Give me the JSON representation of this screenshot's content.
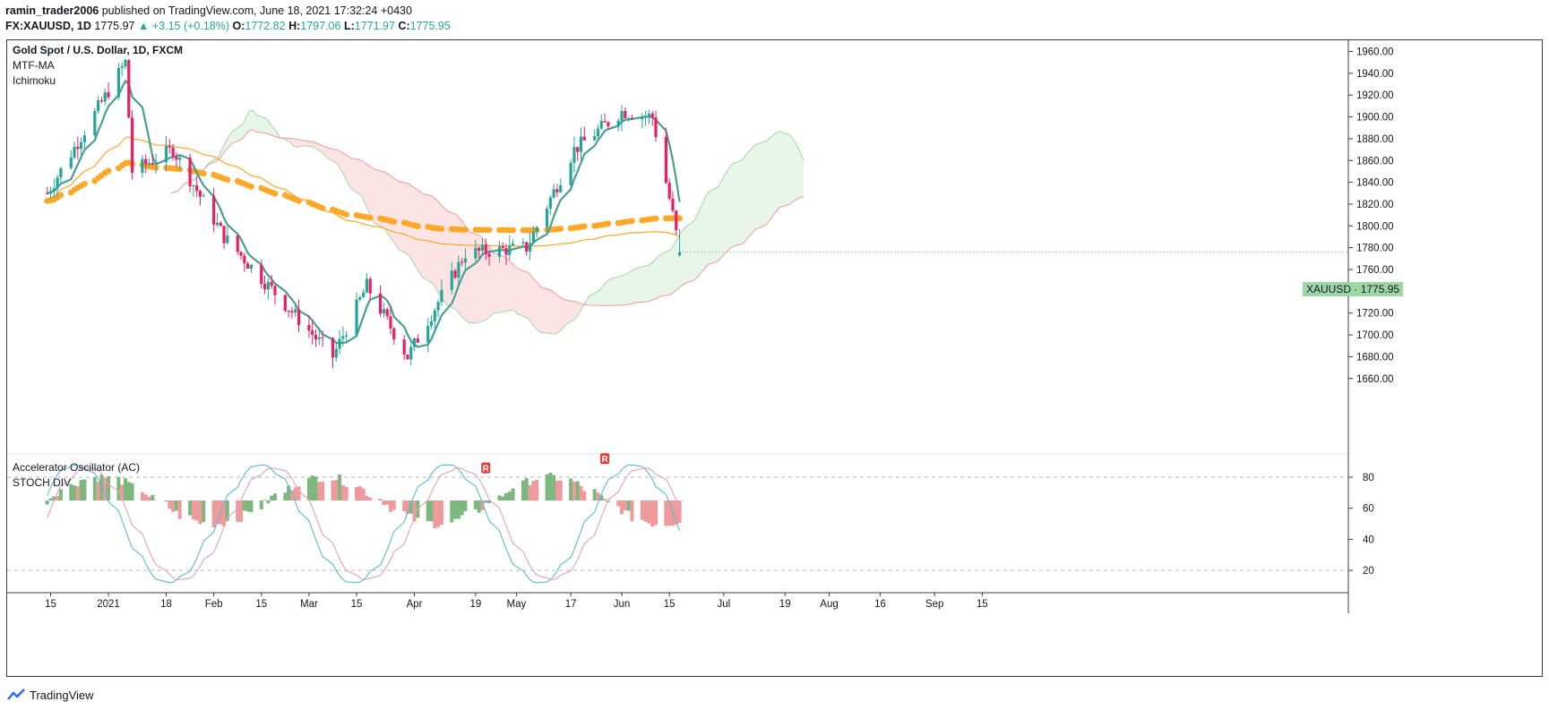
{
  "header": {
    "author": "ramin_trader2006",
    "published": "published on TradingView.com, June 18, 2021 17:32:24 +0430",
    "symbol": "FX:XAUUSD, 1D",
    "last": "1775.97",
    "change": "▲ +3.15 (+0.18%)",
    "o_label": "O:",
    "o": "1772.82",
    "h_label": "H:",
    "h": "1797.06",
    "l_label": "L:",
    "l": "1771.97",
    "c_label": "C:",
    "c": "1775.95"
  },
  "legend": {
    "main_title": "Gold Spot / U.S. Dollar, 1D, FXCM",
    "ind1": "MTF-MA",
    "ind2": "Ichimoku",
    "osc1": "Accelerator Oscillator (AC)",
    "osc2": "STOCH DIV"
  },
  "price_tag": {
    "symbol": "XAUUSD",
    "sep": "·",
    "value": "1775.95"
  },
  "footer": {
    "brand": "TradingView"
  },
  "colors": {
    "up": "#26a69a",
    "down": "#e91e63",
    "ma_thick": "#ffa726",
    "ma_thin": "#ffa726",
    "kijun": "#4a9e94",
    "cloud_green": "#e8f5e9",
    "cloud_red": "#fde4e4",
    "ac_up": "#7cb87e",
    "ac_down": "#ef9a9a",
    "stoch_k": "#5bbad5",
    "stoch_d": "#e0a3b5"
  },
  "chart_data": [
    {
      "type": "candlestick",
      "name": "Gold Spot / U.S. Dollar, 1D, FXCM",
      "ylim": [
        1650,
        1970
      ],
      "y_ticks": [
        1660,
        1680,
        1700,
        1720,
        1740,
        1760,
        1780,
        1800,
        1820,
        1840,
        1860,
        1880,
        1900,
        1920,
        1940,
        1960
      ],
      "x_ticks": [
        "15",
        "2021",
        "18",
        "Feb",
        "15",
        "Mar",
        "15",
        "Apr",
        "19",
        "May",
        "17",
        "Jun",
        "15",
        "Jul",
        "19",
        "Aug",
        "16",
        "Sep",
        "15"
      ],
      "key_closes": [
        {
          "date": "2020-12-14",
          "close": 1830
        },
        {
          "date": "2021-01-06",
          "close": 1950
        },
        {
          "date": "2021-01-08",
          "close": 1850
        },
        {
          "date": "2021-01-20",
          "close": 1870
        },
        {
          "date": "2021-02-04",
          "close": 1790
        },
        {
          "date": "2021-03-08",
          "close": 1680
        },
        {
          "date": "2021-03-18",
          "close": 1745
        },
        {
          "date": "2021-03-30",
          "close": 1680
        },
        {
          "date": "2021-04-16",
          "close": 1775
        },
        {
          "date": "2021-05-04",
          "close": 1780
        },
        {
          "date": "2021-05-18",
          "close": 1870
        },
        {
          "date": "2021-06-01",
          "close": 1905
        },
        {
          "date": "2021-06-10",
          "close": 1900
        },
        {
          "date": "2021-06-16",
          "close": 1810
        },
        {
          "date": "2021-06-18",
          "close": 1775.95
        }
      ],
      "last": {
        "open": 1772.82,
        "high": 1797.06,
        "low": 1771.97,
        "close": 1775.95
      }
    },
    {
      "type": "bar",
      "name": "Accelerator Oscillator (AC)",
      "ylim": [
        10,
        90
      ],
      "y_ticks": [
        20,
        40,
        60,
        80
      ],
      "reference_lines": [
        20,
        80
      ],
      "markers": [
        "R",
        "R"
      ]
    }
  ]
}
